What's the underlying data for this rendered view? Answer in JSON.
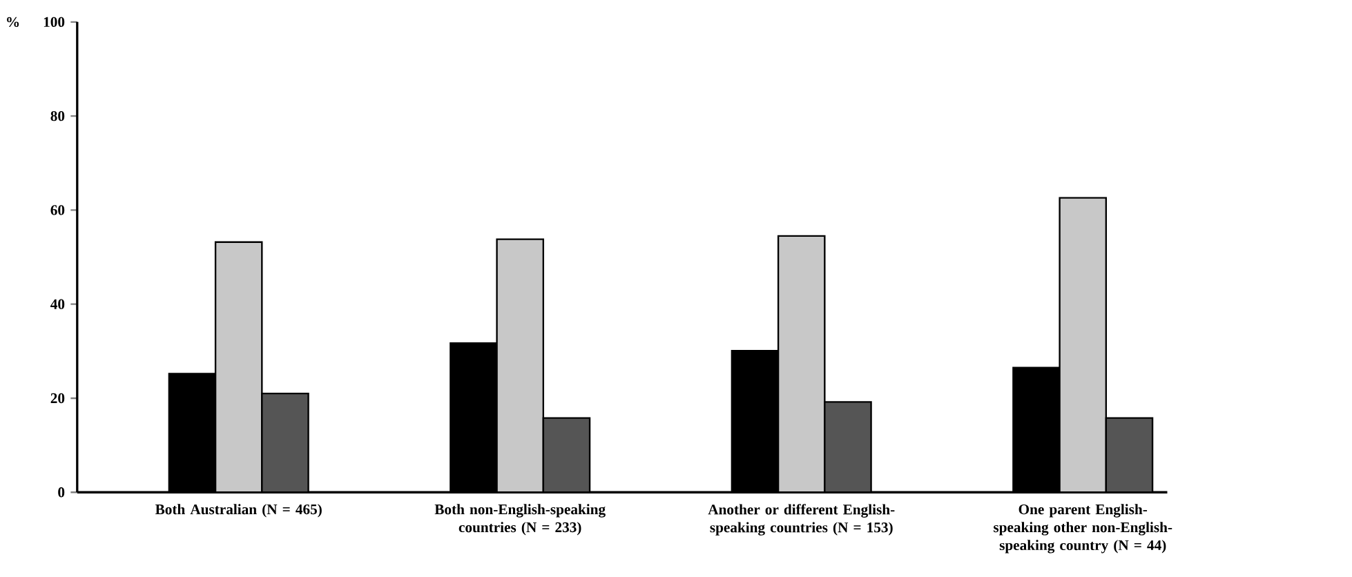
{
  "chart_data": {
    "type": "bar",
    "ylabel": "%",
    "categories": [
      "Both Australian (N = 465)",
      "Both non-English-speaking countries (N = 233)",
      "Another or different English-speaking countries (N = 153)",
      "One parent English-speaking other non-English-speaking country (N = 44)"
    ],
    "series": [
      {
        "color": "#000000",
        "values": [
          25.2,
          31.7,
          30.1,
          26.5
        ]
      },
      {
        "color": "#c8c8c8",
        "values": [
          53.2,
          53.8,
          54.5,
          62.6
        ]
      },
      {
        "color": "#555555",
        "values": [
          21,
          15.8,
          19.2,
          15.8
        ]
      }
    ],
    "ylim": [
      0,
      100
    ],
    "yticks": [
      0,
      20,
      40,
      60,
      80,
      100
    ]
  }
}
